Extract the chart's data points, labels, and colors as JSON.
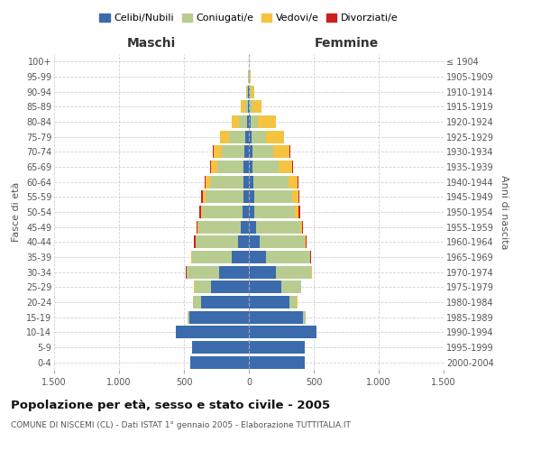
{
  "age_groups": [
    "0-4",
    "5-9",
    "10-14",
    "15-19",
    "20-24",
    "25-29",
    "30-34",
    "35-39",
    "40-44",
    "45-49",
    "50-54",
    "55-59",
    "60-64",
    "65-69",
    "70-74",
    "75-79",
    "80-84",
    "85-89",
    "90-94",
    "95-99",
    "100+"
  ],
  "birth_years": [
    "2000-2004",
    "1995-1999",
    "1990-1994",
    "1985-1989",
    "1980-1984",
    "1975-1979",
    "1970-1974",
    "1965-1969",
    "1960-1964",
    "1955-1959",
    "1950-1954",
    "1945-1949",
    "1940-1944",
    "1935-1939",
    "1930-1934",
    "1925-1929",
    "1920-1924",
    "1915-1919",
    "1910-1914",
    "1905-1909",
    "≤ 1904"
  ],
  "maschi": {
    "celibi": [
      450,
      440,
      560,
      460,
      370,
      290,
      230,
      130,
      80,
      60,
      50,
      45,
      40,
      40,
      35,
      25,
      15,
      10,
      5,
      2,
      2
    ],
    "coniugati": [
      0,
      0,
      2,
      10,
      60,
      130,
      250,
      310,
      330,
      330,
      310,
      290,
      260,
      200,
      170,
      130,
      60,
      20,
      10,
      3,
      0
    ],
    "vedovi": [
      0,
      0,
      0,
      0,
      0,
      2,
      2,
      2,
      3,
      5,
      10,
      20,
      35,
      55,
      65,
      65,
      55,
      30,
      8,
      2,
      0
    ],
    "divorziati": [
      0,
      0,
      0,
      0,
      2,
      3,
      5,
      5,
      8,
      10,
      10,
      10,
      8,
      5,
      5,
      3,
      0,
      0,
      0,
      0,
      0
    ]
  },
  "femmine": {
    "nubili": [
      430,
      430,
      520,
      420,
      310,
      250,
      210,
      130,
      80,
      55,
      45,
      40,
      35,
      30,
      25,
      20,
      15,
      10,
      8,
      3,
      2
    ],
    "coniugate": [
      0,
      0,
      3,
      15,
      60,
      150,
      270,
      340,
      350,
      340,
      310,
      290,
      270,
      200,
      160,
      110,
      55,
      20,
      10,
      3,
      0
    ],
    "vedove": [
      0,
      0,
      0,
      0,
      2,
      3,
      3,
      5,
      8,
      15,
      30,
      50,
      70,
      100,
      130,
      140,
      135,
      70,
      25,
      5,
      0
    ],
    "divorziate": [
      0,
      0,
      0,
      0,
      2,
      3,
      5,
      5,
      8,
      10,
      12,
      12,
      10,
      8,
      5,
      3,
      0,
      0,
      0,
      0,
      0
    ]
  },
  "colors": {
    "celibi_nubili": "#3b6bac",
    "coniugati": "#b8cc90",
    "vedovi": "#f5c340",
    "divorziati": "#cc1f1f"
  },
  "xlim": 1500,
  "title": "Popolazione per età, sesso e stato civile - 2005",
  "subtitle": "COMUNE DI NISCEMI (CL) - Dati ISTAT 1° gennaio 2005 - Elaborazione TUTTITALIA.IT",
  "xlabel_left": "Maschi",
  "xlabel_right": "Femmine",
  "ylabel_left": "Fasce di età",
  "ylabel_right": "Anni di nascita",
  "legend_labels": [
    "Celibi/Nubili",
    "Coniugati/e",
    "Vedovi/e",
    "Divorziati/e"
  ],
  "xticks": [
    -1500,
    -1000,
    -500,
    0,
    500,
    1000,
    1500
  ],
  "xtick_labels": [
    "1.500",
    "1.000",
    "500",
    "0",
    "500",
    "1.000",
    "1.500"
  ],
  "background_color": "#ffffff",
  "grid_color": "#cccccc"
}
